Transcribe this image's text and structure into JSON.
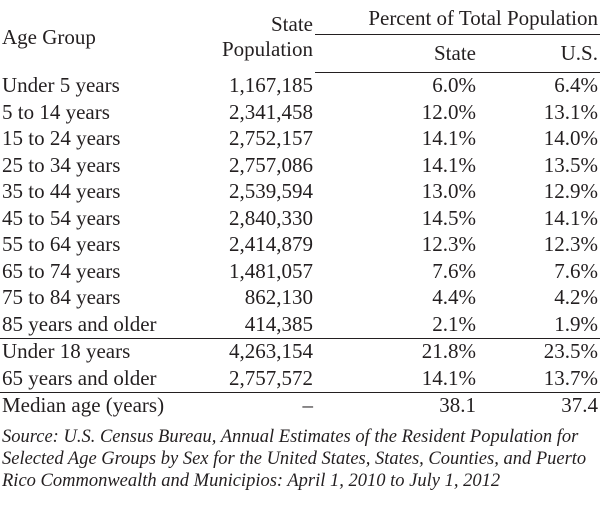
{
  "table": {
    "header": {
      "age_group": "Age Group",
      "state_population_line1": "State",
      "state_population_line2": "Population",
      "percent_total": "Percent of Total Population",
      "state": "State",
      "us": "U.S."
    },
    "groups": [
      [
        {
          "label": "Under 5 years",
          "population": "1,167,185",
          "state_pct": "6.0%",
          "us_pct": "6.4%"
        },
        {
          "label": "5 to 14 years",
          "population": "2,341,458",
          "state_pct": "12.0%",
          "us_pct": "13.1%"
        },
        {
          "label": "15 to 24 years",
          "population": "2,752,157",
          "state_pct": "14.1%",
          "us_pct": "14.0%"
        },
        {
          "label": "25 to 34 years",
          "population": "2,757,086",
          "state_pct": "14.1%",
          "us_pct": "13.5%"
        },
        {
          "label": "35 to 44 years",
          "population": "2,539,594",
          "state_pct": "13.0%",
          "us_pct": "12.9%"
        },
        {
          "label": "45 to 54 years",
          "population": "2,840,330",
          "state_pct": "14.5%",
          "us_pct": "14.1%"
        },
        {
          "label": "55 to 64 years",
          "population": "2,414,879",
          "state_pct": "12.3%",
          "us_pct": "12.3%"
        },
        {
          "label": "65 to 74 years",
          "population": "1,481,057",
          "state_pct": "7.6%",
          "us_pct": "7.6%"
        },
        {
          "label": "75 to 84 years",
          "population": "862,130",
          "state_pct": "4.4%",
          "us_pct": "4.2%"
        },
        {
          "label": "85 years and older",
          "population": "414,385",
          "state_pct": "2.1%",
          "us_pct": "1.9%"
        }
      ],
      [
        {
          "label": "Under 18 years",
          "population": "4,263,154",
          "state_pct": "21.8%",
          "us_pct": "23.5%"
        },
        {
          "label": "65 years and older",
          "population": "2,757,572",
          "state_pct": "14.1%",
          "us_pct": "13.7%"
        }
      ],
      [
        {
          "label": "Median age (years)",
          "population": "–",
          "state_pct": "38.1",
          "us_pct": "37.4"
        }
      ]
    ]
  },
  "source": "Source: U.S. Census Bureau, Annual Estimates of the Resident Population for Selected Age Groups by Sex for the United States, States, Counties, and Puerto Rico Commonwealth and Municipios: April 1, 2010 to July 1, 2012"
}
